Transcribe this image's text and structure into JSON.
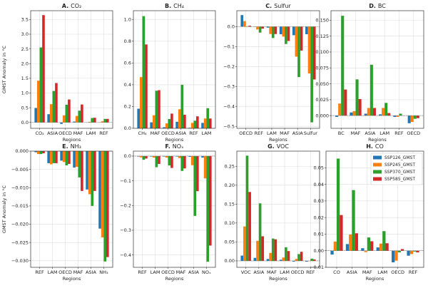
{
  "colors": {
    "SSP126_GMST": "#1f77b4",
    "SSP245_GMST": "#ff7f0e",
    "SSP370_GMST": "#2ca02c",
    "SSP585_GMST": "#d62728"
  },
  "legend": {
    "placement": "top-right of panel H",
    "entries": [
      "SSP126_GMST",
      "SSP245_GMST",
      "SSP370_GMST",
      "SSP585_GMST"
    ]
  },
  "chart_data": [
    {
      "type": "bar",
      "letter": "A.",
      "title": "CO₂",
      "xlabel": "Regions",
      "ylabel": "GMST Anomaly in °C",
      "grid": true,
      "ylim": [
        -0.2,
        3.8
      ],
      "yticks": [
        "0.0",
        "0.5",
        "1.0",
        "1.5",
        "2.0",
        "2.5",
        "3.0",
        "3.5"
      ],
      "categories": [
        "CO₂",
        "ASIA",
        "OECD",
        "MAF",
        "LAM",
        "REF"
      ],
      "series": [
        {
          "name": "SSP126_GMST",
          "values": [
            0.49,
            0.28,
            -0.05,
            0.03,
            0.0,
            0.0
          ]
        },
        {
          "name": "SSP245_GMST",
          "values": [
            1.42,
            0.62,
            0.24,
            0.22,
            0.02,
            0.04
          ]
        },
        {
          "name": "SSP370_GMST",
          "values": [
            2.55,
            1.07,
            0.6,
            0.4,
            0.15,
            0.12
          ]
        },
        {
          "name": "SSP585_GMST",
          "values": [
            3.65,
            1.34,
            0.78,
            0.61,
            0.16,
            0.12
          ]
        }
      ]
    },
    {
      "type": "bar",
      "letter": "B.",
      "title": "CH₄",
      "xlabel": "Regions",
      "ylabel": "",
      "grid": true,
      "ylim": [
        0,
        1.08
      ],
      "yticks": [
        "0.0",
        "0.2",
        "0.4",
        "0.6",
        "0.8",
        "1.0"
      ],
      "categories": [
        "CH₄",
        "MAF",
        "OECD",
        "ASIA",
        "REF",
        "LAM"
      ],
      "series": [
        {
          "name": "SSP126_GMST",
          "values": [
            0.18,
            0.055,
            0.01,
            0.06,
            0.005,
            0.05
          ]
        },
        {
          "name": "SSP245_GMST",
          "values": [
            0.47,
            0.12,
            0.045,
            0.175,
            0.05,
            0.09
          ]
        },
        {
          "name": "SSP370_GMST",
          "values": [
            1.03,
            0.345,
            0.085,
            0.4,
            0.07,
            0.185
          ]
        },
        {
          "name": "SSP585_GMST",
          "values": [
            0.77,
            0.35,
            0.135,
            0.125,
            0.11,
            0.09
          ]
        }
      ]
    },
    {
      "type": "bar",
      "letter": "C.",
      "title": "Sulfur",
      "xlabel": "Regions",
      "ylabel": "",
      "grid": true,
      "ylim": [
        -0.51,
        0.08
      ],
      "yticks": [
        "0.0",
        "−0.1",
        "−0.2",
        "−0.3",
        "−0.4",
        "−0.5"
      ],
      "categories": [
        "OECD",
        "REF",
        "LAM",
        "MAF",
        "ASIA",
        "Sulfur"
      ],
      "series": [
        {
          "name": "SSP126_GMST",
          "values": [
            0.058,
            0.0,
            -0.005,
            -0.038,
            -0.043,
            -0.038
          ]
        },
        {
          "name": "SSP245_GMST",
          "values": [
            0.028,
            -0.014,
            -0.037,
            -0.05,
            -0.15,
            -0.235
          ]
        },
        {
          "name": "SSP370_GMST",
          "values": [
            0.002,
            -0.03,
            -0.057,
            -0.087,
            -0.253,
            -0.48
          ]
        },
        {
          "name": "SSP585_GMST",
          "values": [
            0.005,
            -0.01,
            -0.037,
            -0.072,
            -0.12,
            -0.265
          ]
        }
      ]
    },
    {
      "type": "bar",
      "letter": "D.",
      "title": "BC",
      "xlabel": "Regions",
      "ylabel": "",
      "grid": true,
      "ylim": [
        -0.02,
        0.165
      ],
      "yticks": [
        "0.000",
        "0.025",
        "0.050",
        "0.075",
        "0.100",
        "0.125",
        "0.150"
      ],
      "categories": [
        "BC",
        "MAF",
        "ASIA",
        "LAM",
        "REF",
        "OECD"
      ],
      "series": [
        {
          "name": "SSP126_GMST",
          "values": [
            -0.002,
            0.005,
            0.003,
            0.002,
            -0.002,
            -0.012
          ]
        },
        {
          "name": "SSP245_GMST",
          "values": [
            0.019,
            0.007,
            0.012,
            0.012,
            -0.002,
            -0.01
          ]
        },
        {
          "name": "SSP370_GMST",
          "values": [
            0.157,
            0.057,
            0.08,
            0.02,
            0.003,
            -0.005
          ]
        },
        {
          "name": "SSP585_GMST",
          "values": [
            0.041,
            0.026,
            0.012,
            0.004,
            0.0,
            -0.004
          ]
        }
      ]
    },
    {
      "type": "bar",
      "letter": "E.",
      "title": "NH₃",
      "xlabel": "Regions",
      "ylabel": "GMST Anomaly in °C",
      "grid": true,
      "ylim": [
        -0.0318,
        0
      ],
      "yticks": [
        "0.000",
        "−0.005",
        "−0.010",
        "−0.015",
        "−0.020",
        "−0.025",
        "−0.030"
      ],
      "categories": [
        "REF",
        "LAM",
        "OECD",
        "MAF",
        "ASIA",
        "NH₃"
      ],
      "series": [
        {
          "name": "SSP126_GMST",
          "values": [
            -0.0003,
            -0.0033,
            -0.0026,
            -0.0045,
            -0.0105,
            -0.0212
          ]
        },
        {
          "name": "SSP245_GMST",
          "values": [
            -0.0008,
            -0.0036,
            -0.003,
            -0.0043,
            -0.0118,
            -0.0236
          ]
        },
        {
          "name": "SSP370_GMST",
          "values": [
            -0.0008,
            -0.0033,
            -0.0039,
            -0.0072,
            -0.015,
            -0.0302
          ]
        },
        {
          "name": "SSP585_GMST",
          "values": [
            -0.0006,
            -0.0033,
            -0.0035,
            -0.0109,
            -0.0109,
            -0.029
          ]
        }
      ]
    },
    {
      "type": "bar",
      "letter": "F.",
      "title": "NOₓ",
      "xlabel": "Regions",
      "ylabel": "",
      "grid": true,
      "ylim": [
        -0.45,
        0.02
      ],
      "yticks": [
        "0.0",
        "−0.1",
        "−0.2",
        "−0.3",
        "−0.4"
      ],
      "categories": [
        "REF",
        "LAM",
        "OECD",
        "MAF",
        "ASIA",
        "NOₓ"
      ],
      "series": [
        {
          "name": "SSP126_GMST",
          "values": [
            -0.002,
            -0.002,
            -0.002,
            -0.002,
            -0.003,
            -0.006
          ]
        },
        {
          "name": "SSP245_GMST",
          "values": [
            -0.005,
            -0.006,
            -0.006,
            -0.008,
            -0.037,
            -0.09
          ]
        },
        {
          "name": "SSP370_GMST",
          "values": [
            -0.015,
            -0.045,
            -0.038,
            -0.06,
            -0.242,
            -0.427
          ]
        },
        {
          "name": "SSP585_GMST",
          "values": [
            -0.01,
            -0.032,
            -0.048,
            -0.05,
            -0.142,
            -0.362
          ]
        }
      ]
    },
    {
      "type": "bar",
      "letter": "G.",
      "title": "VOC",
      "xlabel": "Regions",
      "ylabel": "",
      "grid": true,
      "ylim": [
        -0.017,
        0.29
      ],
      "yticks": [
        "0.00",
        "0.05",
        "0.10",
        "0.15",
        "0.20",
        "0.25"
      ],
      "categories": [
        "VOC",
        "ASIA",
        "MAF",
        "LAM",
        "OECD",
        "REF"
      ],
      "series": [
        {
          "name": "SSP126_GMST",
          "values": [
            0.014,
            0.008,
            0.005,
            0.003,
            -0.002,
            -0.002
          ]
        },
        {
          "name": "SSP245_GMST",
          "values": [
            0.091,
            0.053,
            0.021,
            0.009,
            0.005,
            0.0
          ]
        },
        {
          "name": "SSP370_GMST",
          "values": [
            0.278,
            0.152,
            0.059,
            0.036,
            0.018,
            0.006
          ]
        },
        {
          "name": "SSP585_GMST",
          "values": [
            0.182,
            0.065,
            0.057,
            0.026,
            0.024,
            0.004
          ]
        }
      ]
    },
    {
      "type": "bar",
      "letter": "H.",
      "title": "CO",
      "xlabel": "Regions",
      "ylabel": "",
      "grid": true,
      "ylim": [
        -0.01,
        0.06
      ],
      "yticks": [
        "−0.01",
        "0.00",
        "0.01",
        "0.02",
        "0.03",
        "0.04",
        "0.05"
      ],
      "categories": [
        "CO",
        "ASIA",
        "MAF",
        "LAM",
        "OECD",
        "REF"
      ],
      "series": [
        {
          "name": "SSP126_GMST",
          "values": [
            -0.0023,
            0.004,
            0.0015,
            0.002,
            -0.007,
            -0.003
          ]
        },
        {
          "name": "SSP245_GMST",
          "values": [
            0.0055,
            0.0098,
            -0.0008,
            0.0043,
            -0.006,
            -0.002
          ]
        },
        {
          "name": "SSP370_GMST",
          "values": [
            0.0555,
            0.0365,
            0.008,
            0.0118,
            -0.001,
            -0.0005
          ]
        },
        {
          "name": "SSP585_GMST",
          "values": [
            0.0215,
            0.0105,
            0.0057,
            0.0045,
            0.001,
            -0.001
          ]
        }
      ]
    }
  ]
}
